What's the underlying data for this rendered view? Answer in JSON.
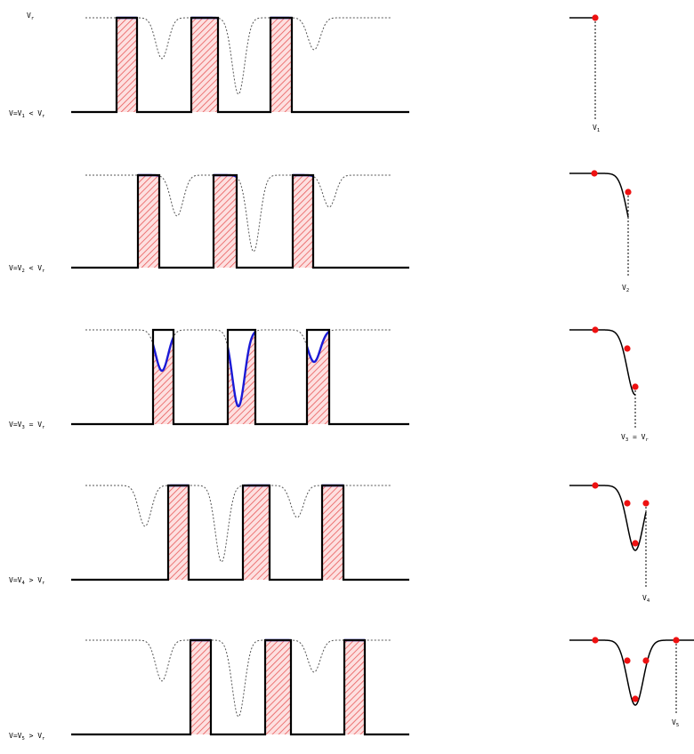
{
  "colors": {
    "filled": "#e85a5a",
    "curve": "#1a1ad6",
    "profile": "#000000",
    "dotted": "#555555",
    "marker": "#ee1111"
  },
  "top_label": {
    "main": "V",
    "sub": "r"
  },
  "panels": [
    {
      "left": {
        "main": "V=V",
        "idx": "1",
        "rest": " < V",
        "ref": "r"
      },
      "right": {
        "main": "V",
        "idx": "1",
        "rest": "",
        "ref": ""
      }
    },
    {
      "left": {
        "main": "V=V",
        "idx": "2",
        "rest": " < V",
        "ref": "r"
      },
      "right": {
        "main": "V",
        "idx": "2",
        "rest": "",
        "ref": ""
      }
    },
    {
      "left": {
        "main": "V=V",
        "idx": "3",
        "rest": " = V",
        "ref": "r"
      },
      "right": {
        "main": "V",
        "idx": "3",
        "rest": " = V",
        "ref": "r"
      }
    },
    {
      "left": {
        "main": "V=V",
        "idx": "4",
        "rest": " > V",
        "ref": "r"
      },
      "right": {
        "main": "V",
        "idx": "4",
        "rest": "",
        "ref": ""
      }
    },
    {
      "left": {
        "main": "V=V",
        "idx": "5",
        "rest": " > V",
        "ref": "r"
      },
      "right": {
        "main": "V",
        "idx": "5",
        "rest": "",
        "ref": ""
      }
    }
  ]
}
